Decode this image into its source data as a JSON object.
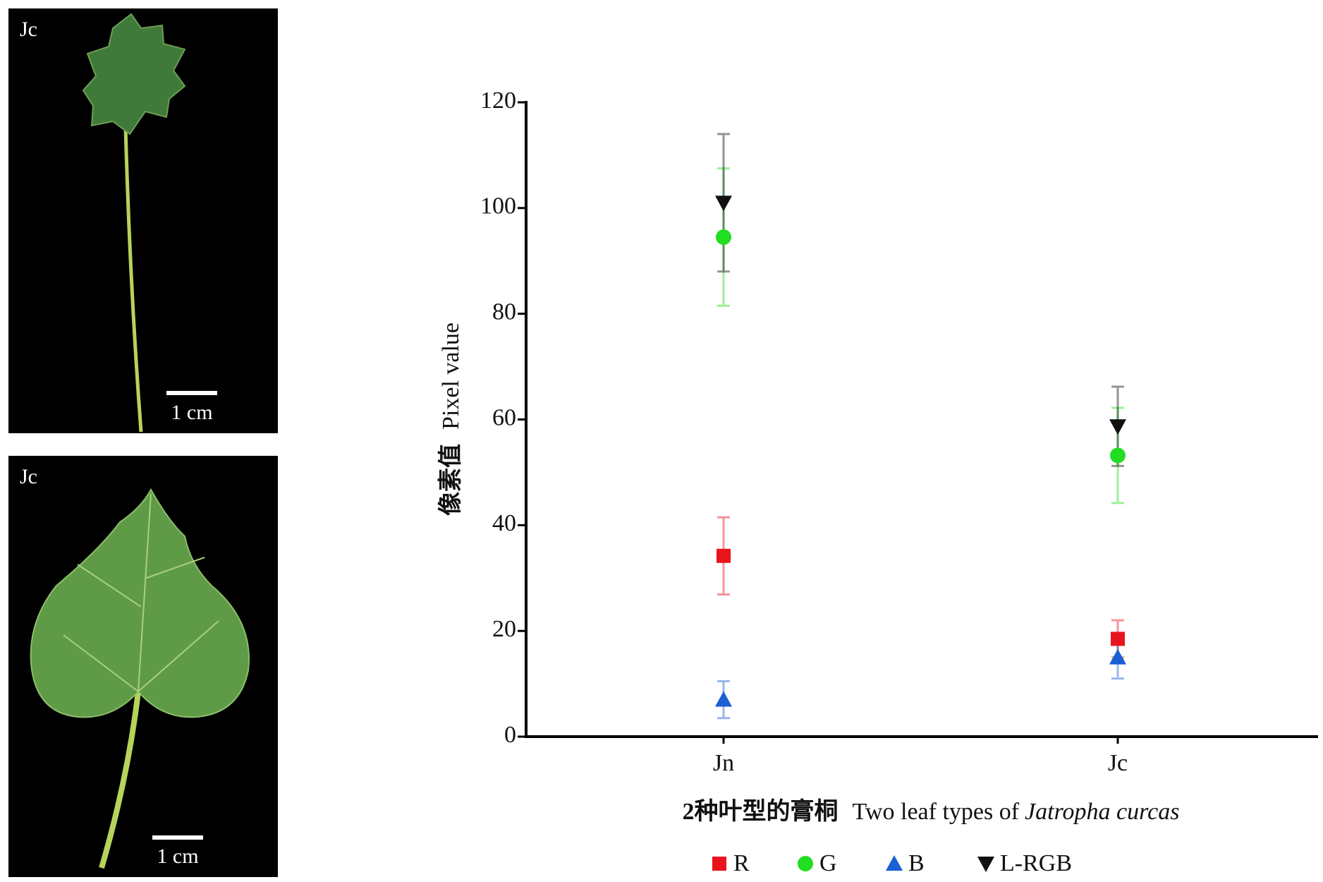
{
  "panels": [
    {
      "label": "Jc",
      "scale_bar": "1 cm"
    },
    {
      "label": "Jc",
      "scale_bar": "1 cm"
    }
  ],
  "chart_data": {
    "type": "scatter",
    "xlabel": {
      "zh": "2种叶型的膏桐",
      "en": "Two leaf types of",
      "en_italic": "Jatropha curcas"
    },
    "ylabel": {
      "zh": "像素值",
      "en": "Pixel value"
    },
    "categories": [
      "Jn",
      "Jc"
    ],
    "series": [
      {
        "name": "R",
        "color": "#e8141c",
        "marker": "square",
        "values": [
          34.2,
          18.5
        ],
        "errors": [
          7.3,
          3.5
        ]
      },
      {
        "name": "G",
        "color": "#22dd22",
        "marker": "circle",
        "values": [
          94.5,
          53.2
        ],
        "errors": [
          13,
          9
        ]
      },
      {
        "name": "B",
        "color": "#1a5fd6",
        "marker": "triangle-up",
        "values": [
          7,
          15
        ],
        "errors": [
          3.5,
          4
        ]
      },
      {
        "name": "L-RGB",
        "color": "#111111",
        "marker": "triangle-down",
        "values": [
          101,
          58.7
        ],
        "errors": [
          13,
          7.5
        ]
      }
    ],
    "ylim": [
      0,
      120
    ],
    "yticks": [
      0,
      20,
      40,
      60,
      80,
      100,
      120
    ],
    "grid": false
  }
}
